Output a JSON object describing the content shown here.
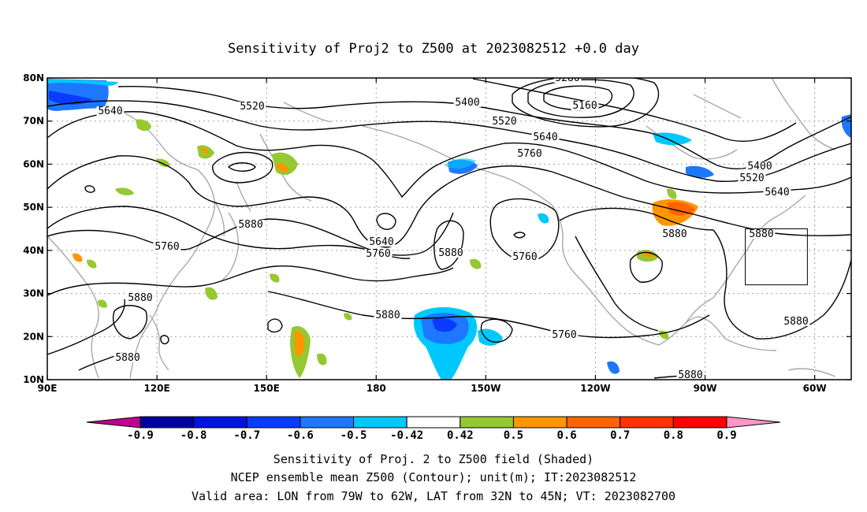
{
  "title": "Sensitivity of Proj2 to Z500 at 2023082512 +0.0 day",
  "map": {
    "lon_range": [
      90,
      310
    ],
    "lat_range": [
      10,
      80
    ],
    "lat_labels": [
      "80N",
      "70N",
      "60N",
      "50N",
      "40N",
      "30N",
      "20N",
      "10N"
    ],
    "lon_labels": [
      "90E",
      "120E",
      "150E",
      "180",
      "150W",
      "120W",
      "90W",
      "60W"
    ],
    "valid_box": {
      "lon": [
        281,
        298
      ],
      "lat": [
        32,
        45
      ]
    }
  },
  "contour_labels": [
    "5280",
    "5160",
    "5400",
    "5520",
    "5640",
    "5520",
    "5640",
    "5760",
    "5400",
    "5520",
    "5640",
    "5880",
    "5640",
    "5760",
    "5880",
    "5760",
    "5760",
    "5880",
    "5880",
    "5880",
    "5880",
    "5760",
    "5880",
    "5880",
    "5880"
  ],
  "colorbar": {
    "labels": [
      "-0.9",
      "-0.8",
      "-0.7",
      "-0.6",
      "-0.5",
      "-0.42",
      "0.42",
      "0.5",
      "0.6",
      "0.7",
      "0.8",
      "0.9"
    ],
    "colors": [
      "#0000a0",
      "#0014e0",
      "#0a3cff",
      "#1e78ff",
      "#00c8ff",
      "#ffffff",
      "#96c832",
      "#ff9600",
      "#ff6400",
      "#ff3200",
      "#ff0000"
    ],
    "low_color": "#c00090",
    "high_color": "#ff96c8"
  },
  "caption": [
    "Sensitivity of Proj. 2 to Z500 field (Shaded)",
    "NCEP ensemble mean Z500 (Contour); unit(m); IT:2023082512",
    "Valid area: LON from 79W to 62W, LAT from 32N to 45N; VT: 2023082700"
  ]
}
